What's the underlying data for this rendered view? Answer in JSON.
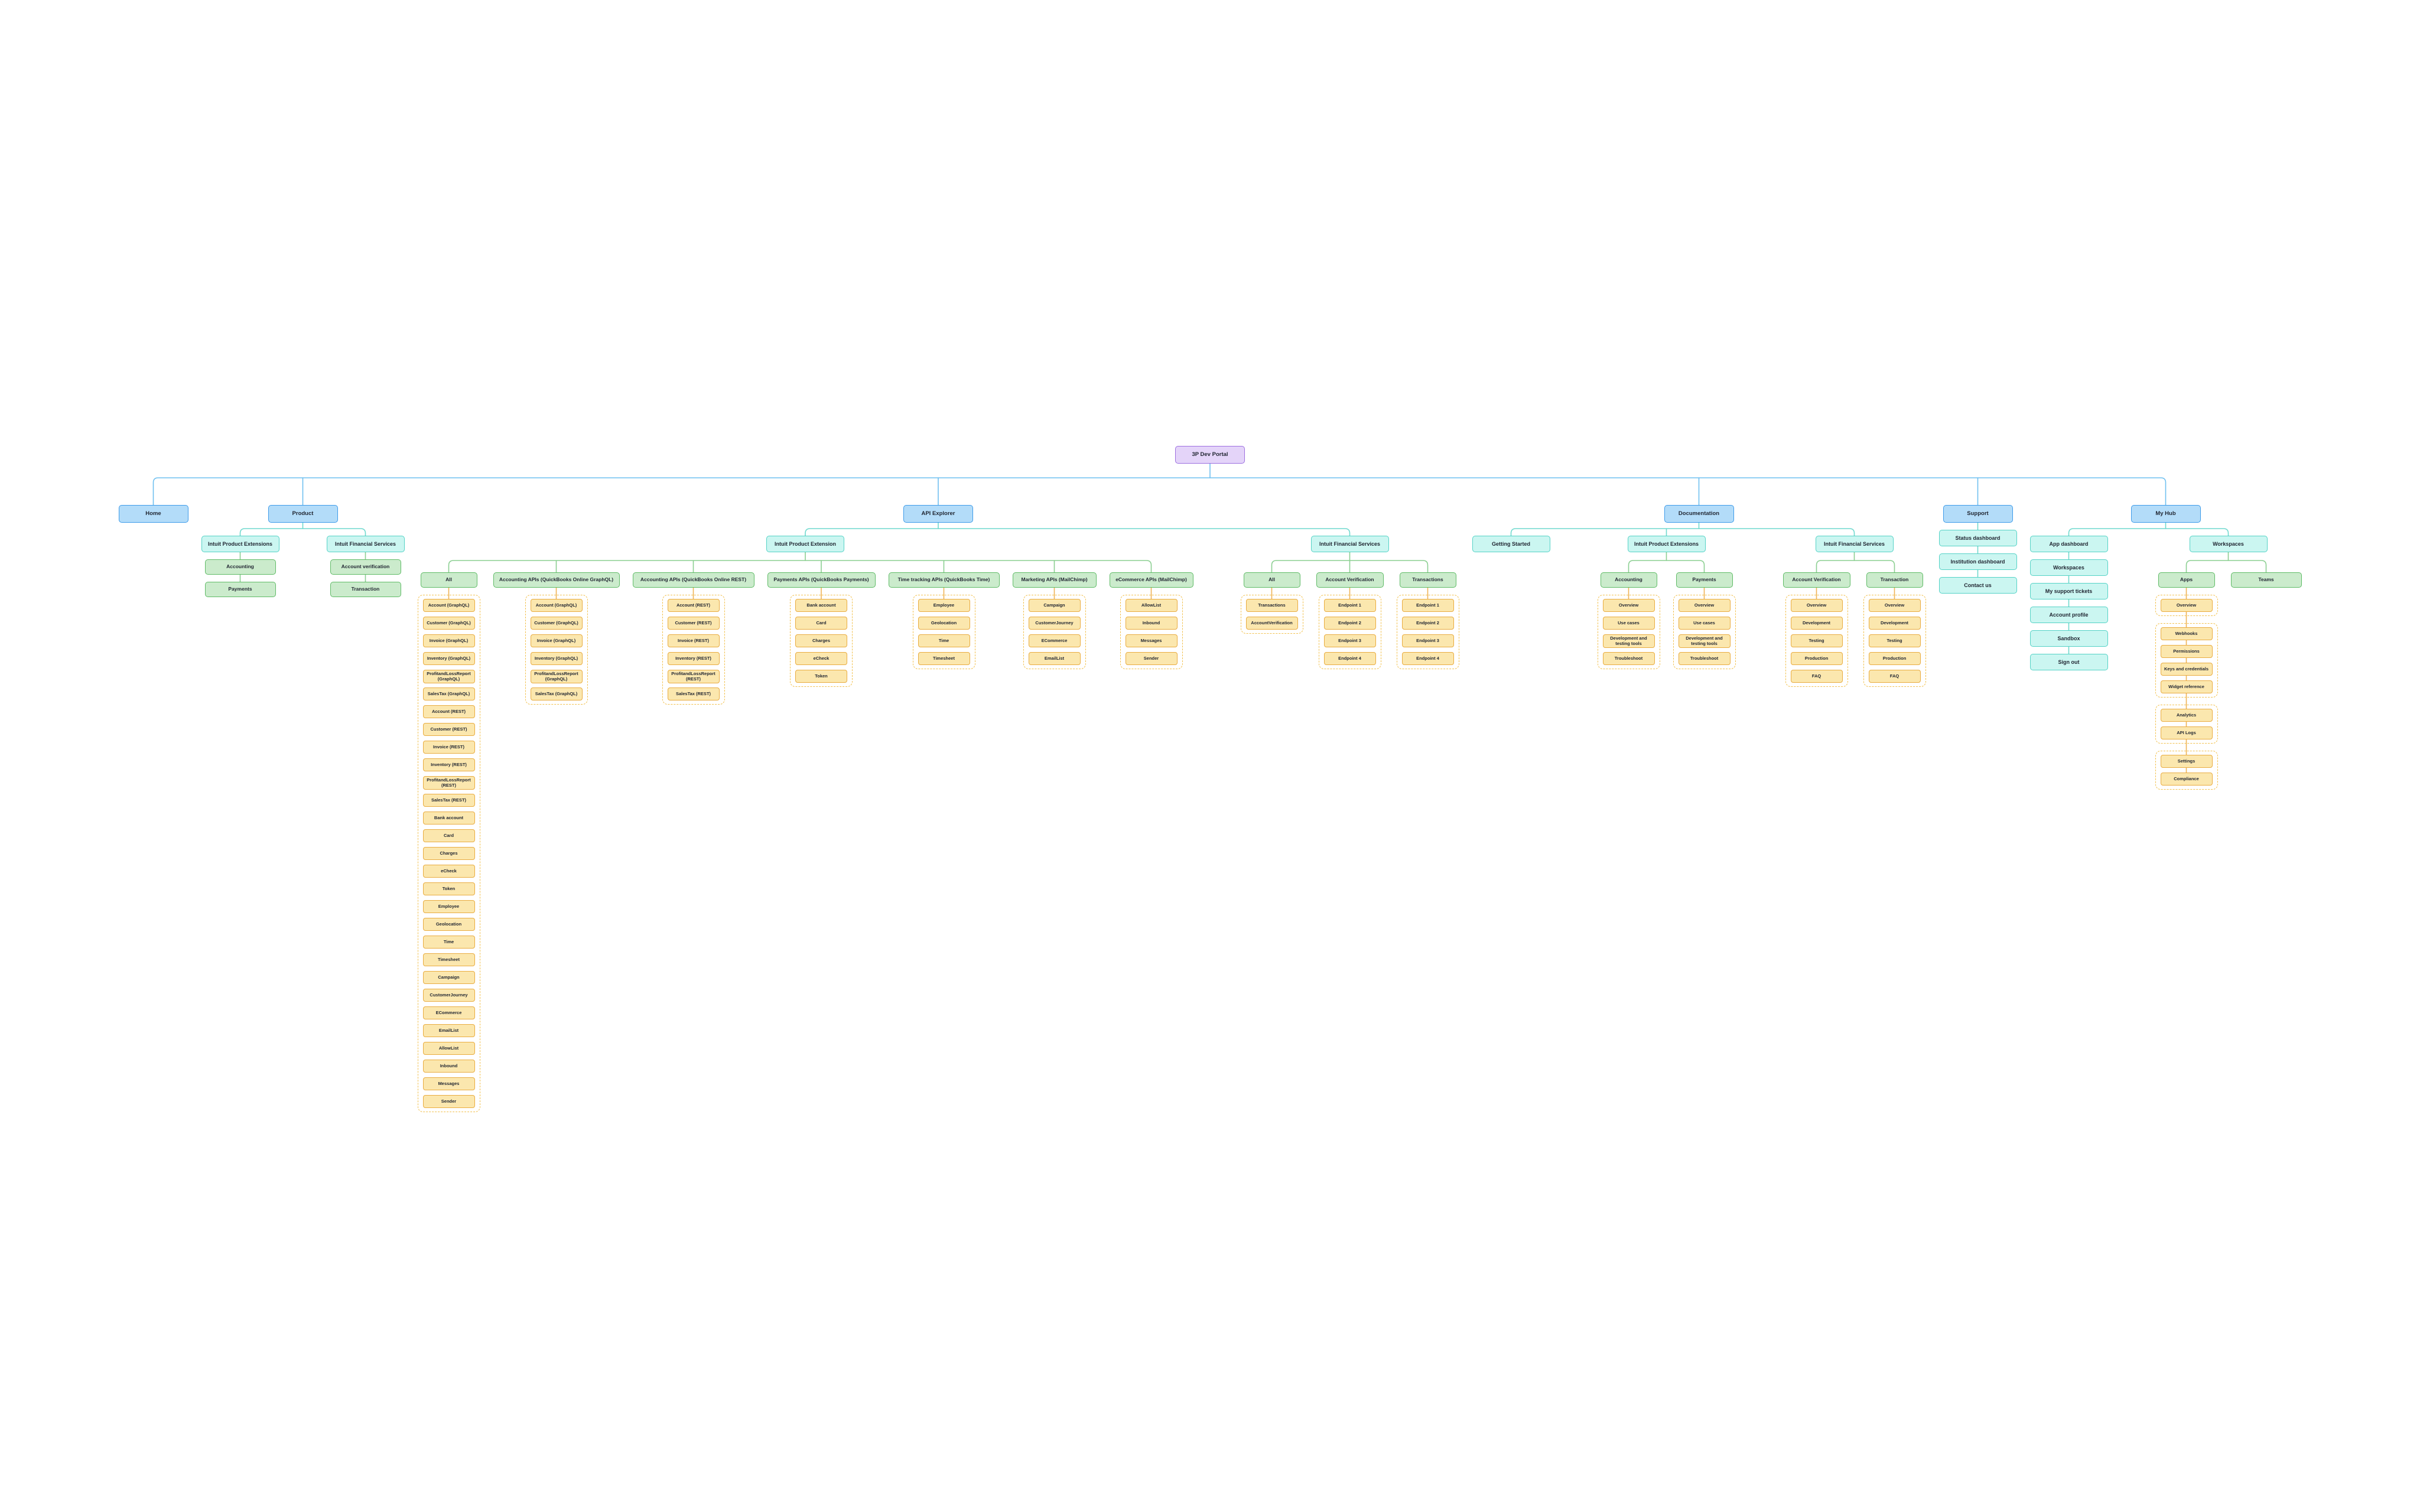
{
  "diagram": {
    "title": "3P Dev Portal sitemap",
    "colors": {
      "canvas": "#ffffff",
      "root_fill": "#E4D4F9",
      "root_border": "#9C6FE0",
      "blue_fill": "#B3DCF9",
      "blue_border": "#3D9BE9",
      "teal_fill": "#CBF6F1",
      "teal_border": "#54D2C6",
      "green_fill": "#CBEBCC",
      "green_border": "#5FBB66",
      "leaf_fill": "#FBE7AE",
      "leaf_border": "#E9AC40",
      "group_border": "#F2C14E",
      "line_blue": "#6FC0F0",
      "line_teal": "#6FD9CE",
      "line_green": "#8BCF91",
      "line_orange": "#F0B455",
      "text": "#1F2430"
    },
    "root": {
      "label": "3P Dev Portal",
      "type": "root",
      "layout": "row",
      "children": [
        {
          "label": "Home",
          "type": "blue"
        },
        {
          "label": "Product",
          "type": "blue",
          "layout": "row",
          "children": [
            {
              "label": "Intuit Product Extensions",
              "type": "teal",
              "layout": "stack",
              "children": [
                {
                  "label": "Accounting",
                  "type": "green"
                },
                {
                  "label": "Payments",
                  "type": "green"
                }
              ]
            },
            {
              "label": "Intuit Financial Services",
              "type": "teal",
              "layout": "stack",
              "children": [
                {
                  "label": "Account verification",
                  "type": "green"
                },
                {
                  "label": "Transaction",
                  "type": "green"
                }
              ]
            }
          ]
        },
        {
          "label": "API Explorer",
          "type": "blue",
          "layout": "row",
          "children": [
            {
              "label": "Intuit Product Extension",
              "type": "teal",
              "layout": "row",
              "children": [
                {
                  "label": "All",
                  "type": "green",
                  "groups": [
                    [
                      "Account (GraphQL)",
                      "Customer (GraphQL)",
                      "Invoice (GraphQL)",
                      "Inventory (GraphQL)",
                      "ProfitandLossReport (GraphQL)",
                      "SalesTax (GraphQL)",
                      "Account (REST)",
                      "Customer (REST)",
                      "Invoice (REST)",
                      "Inventory (REST)",
                      "ProfitandLossReport (REST)",
                      "SalesTax (REST)",
                      "Bank account",
                      "Card",
                      "Charges",
                      "eCheck",
                      "Token",
                      "Employee",
                      "Geolocation",
                      "Time",
                      "Timesheet",
                      "Campaign",
                      "CustomerJourney",
                      "ECommerce",
                      "EmailList",
                      "AllowList",
                      "Inbound",
                      "Messages",
                      "Sender"
                    ]
                  ]
                },
                {
                  "label": "Accounting APIs (QuickBooks Online GraphQL)",
                  "type": "green",
                  "groups": [
                    [
                      "Account (GraphQL)",
                      "Customer (GraphQL)",
                      "Invoice (GraphQL)",
                      "Inventory (GraphQL)",
                      "ProfitandLossReport (GraphQL)",
                      "SalesTax (GraphQL)"
                    ]
                  ]
                },
                {
                  "label": "Accounting APIs (QuickBooks Online REST)",
                  "type": "green",
                  "groups": [
                    [
                      "Account (REST)",
                      "Customer (REST)",
                      "Invoice (REST)",
                      "Inventory (REST)",
                      "ProfitandLossReport (REST)",
                      "SalesTax (REST)"
                    ]
                  ]
                },
                {
                  "label": "Payments APIs (QuickBooks Payments)",
                  "type": "green",
                  "groups": [
                    [
                      "Bank account",
                      "Card",
                      "Charges",
                      "eCheck",
                      "Token"
                    ]
                  ]
                },
                {
                  "label": "Time tracking APIs (QuickBooks Time)",
                  "type": "green",
                  "groups": [
                    [
                      "Employee",
                      "Geolocation",
                      "Time",
                      "Timesheet"
                    ]
                  ]
                },
                {
                  "label": "Marketing APIs (MailChimp)",
                  "type": "green",
                  "groups": [
                    [
                      "Campaign",
                      "CustomerJourney",
                      "ECommerce",
                      "EmailList"
                    ]
                  ]
                },
                {
                  "label": "eCommerce APIs (MailChimp)",
                  "type": "green",
                  "groups": [
                    [
                      "AllowList",
                      "Inbound",
                      "Messages",
                      "Sender"
                    ]
                  ]
                }
              ]
            },
            {
              "label": "Intuit Financial Services",
              "type": "teal",
              "layout": "row",
              "children": [
                {
                  "label": "All",
                  "type": "green",
                  "groups": [
                    [
                      "Transactions",
                      "AccountVerification"
                    ]
                  ]
                },
                {
                  "label": "Account Verification",
                  "type": "green",
                  "groups": [
                    [
                      "Endpoint 1",
                      "Endpoint 2",
                      "Endpoint 3",
                      "Endpoint 4"
                    ]
                  ]
                },
                {
                  "label": "Transactions",
                  "type": "green",
                  "groups": [
                    [
                      "Endpoint 1",
                      "Endpoint 2",
                      "Endpoint 3",
                      "Endpoint 4"
                    ]
                  ]
                }
              ]
            }
          ]
        },
        {
          "label": "Documentation",
          "type": "blue",
          "layout": "row",
          "children": [
            {
              "label": "Getting Started",
              "type": "teal"
            },
            {
              "label": "Intuit Product Extensions",
              "type": "teal",
              "layout": "row",
              "children": [
                {
                  "label": "Accounting",
                  "type": "green",
                  "groups": [
                    [
                      "Overview",
                      "Use cases",
                      "Development and testing tools",
                      "Troubleshoot"
                    ]
                  ]
                },
                {
                  "label": "Payments",
                  "type": "green",
                  "groups": [
                    [
                      "Overview",
                      "Use cases",
                      "Development and testing tools",
                      "Troubleshoot"
                    ]
                  ]
                }
              ]
            },
            {
              "label": "Intuit Financial Services",
              "type": "teal",
              "layout": "row",
              "children": [
                {
                  "label": "Account Verification",
                  "type": "green",
                  "groups": [
                    [
                      "Overview",
                      "Development",
                      "Testing",
                      "Production",
                      "FAQ"
                    ]
                  ]
                },
                {
                  "label": "Transaction",
                  "type": "green",
                  "groups": [
                    [
                      "Overview",
                      "Development",
                      "Testing",
                      "Production",
                      "FAQ"
                    ]
                  ]
                }
              ]
            }
          ]
        },
        {
          "label": "Support",
          "type": "blue",
          "layout": "stack",
          "children": [
            {
              "label": "Status dashboard",
              "type": "teal"
            },
            {
              "label": "Institution dashboard",
              "type": "teal"
            },
            {
              "label": "Contact us",
              "type": "teal"
            }
          ]
        },
        {
          "label": "My Hub",
          "type": "blue",
          "layout": "row",
          "children": [
            {
              "label": "App dashboard",
              "type": "teal",
              "layout": "stack",
              "children": [
                {
                  "label": "Workspaces",
                  "type": "teal"
                },
                {
                  "label": "My support tickets",
                  "type": "teal"
                },
                {
                  "label": "Account profile",
                  "type": "teal"
                },
                {
                  "label": "Sandbox",
                  "type": "teal"
                },
                {
                  "label": "Sign out",
                  "type": "teal"
                }
              ]
            },
            {
              "label": "Workspaces",
              "type": "teal",
              "layout": "row",
              "children": [
                {
                  "label": "Apps",
                  "type": "green",
                  "groups_connected": true,
                  "groups": [
                    [
                      "Overview"
                    ],
                    [
                      "Webhooks",
                      "Permissions",
                      "Keys and credentials",
                      "Widget reference"
                    ],
                    [
                      "Analytics",
                      "API Logs"
                    ],
                    [
                      "Settings",
                      "Compliance"
                    ]
                  ]
                },
                {
                  "label": "Teams",
                  "type": "green"
                }
              ]
            }
          ]
        }
      ]
    }
  }
}
